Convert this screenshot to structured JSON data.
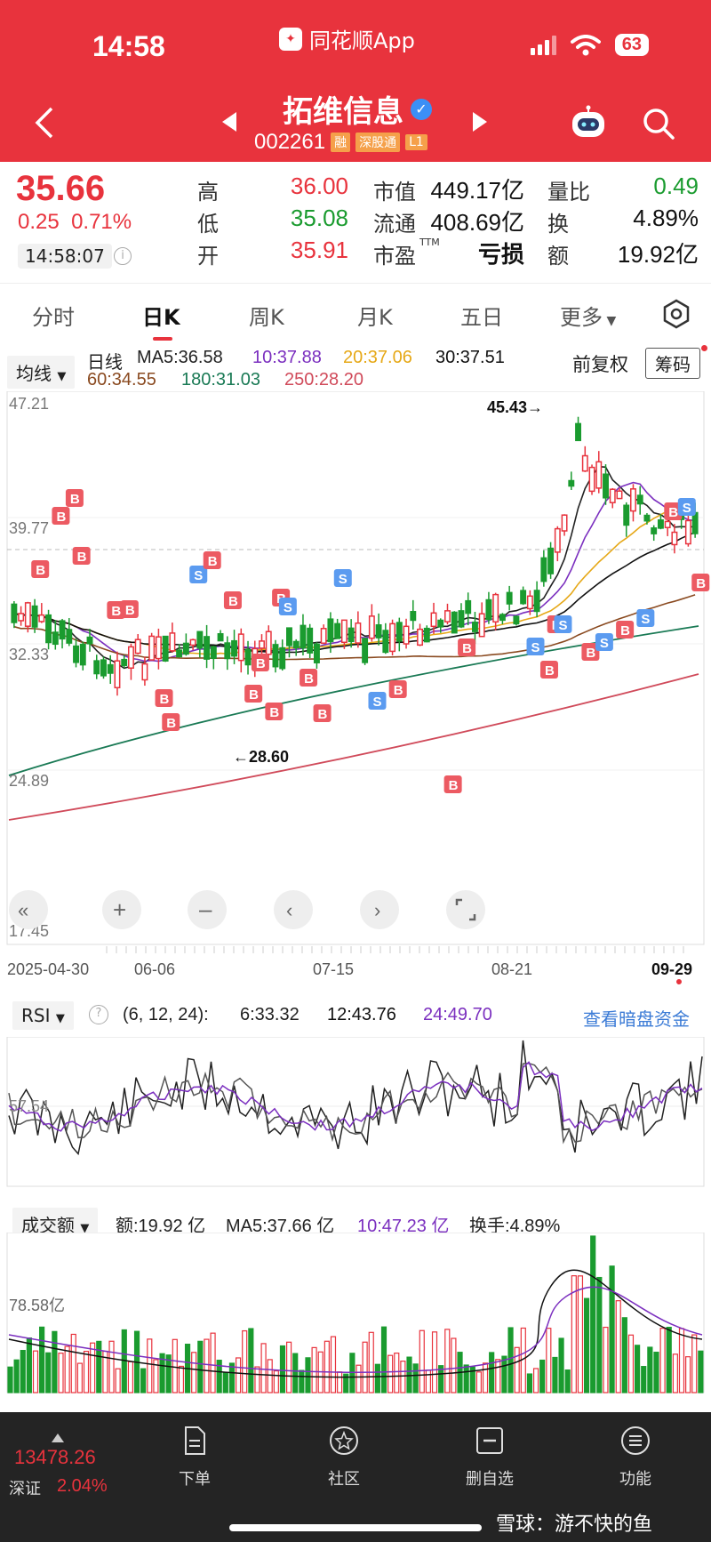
{
  "status_bar": {
    "time": "14:58",
    "app_name": "同花顺App",
    "battery": "63"
  },
  "header": {
    "stock_name": "拓维信息",
    "stock_code": "002261",
    "tags": [
      "融",
      "深股通",
      "L1"
    ]
  },
  "quote": {
    "price": "35.66",
    "change": "0.25",
    "change_pct": "0.71%",
    "time": "14:58:07",
    "high_label": "高",
    "high": "36.00",
    "low_label": "低",
    "low": "35.08",
    "open_label": "开",
    "open": "35.91",
    "mcap_label": "市值",
    "mcap": "449.17亿",
    "float_label": "流通",
    "float": "408.69亿",
    "pe_label": "市盈",
    "pe_sup": "TTM",
    "pe": "亏损",
    "vol_ratio_label": "量比",
    "vol_ratio": "0.49",
    "turnover_label": "换",
    "turnover": "4.89%",
    "amount_label": "额",
    "amount": "19.92亿"
  },
  "tabs": [
    "分时",
    "日K",
    "周K",
    "月K",
    "五日",
    "更多"
  ],
  "ma_bar": {
    "dropdown": "均线",
    "period": "日线",
    "ma5": "MA5:36.58",
    "ma10": "10:37.88",
    "ma20": "20:37.06",
    "ma30": "30:37.51",
    "ma60": "60:34.55",
    "ma180": "180:31.03",
    "ma250": "250:28.20",
    "adjust": "前复权",
    "chip_button": "筹码"
  },
  "kline": {
    "y_ticks": [
      "47.21",
      "39.77",
      "32.33",
      "24.89",
      "17.45"
    ],
    "x_ticks": [
      "2025-04-30",
      "06-06",
      "07-15",
      "08-21",
      "09-29"
    ],
    "high_annot": "45.43→",
    "low_annot": "←28.60",
    "colors": {
      "up": "#e8333d",
      "down": "#1a9b2f",
      "ma5": "#222222",
      "ma10": "#7b2fbf",
      "ma20": "#e6a817",
      "ma30": "#111111",
      "ma60": "#8a4a20",
      "ma180": "#1a7a55",
      "ma250": "#d04a5a"
    }
  },
  "rsi": {
    "dropdown": "RSI",
    "params": "(6, 12, 24):",
    "rsi6": "6:33.32",
    "rsi12": "12:43.76",
    "rsi24": "24:49.70",
    "link": "查看暗盘资金",
    "level_label": "57.54"
  },
  "volume": {
    "dropdown": "成交额",
    "amount": "额:19.92 亿",
    "ma5": "MA5:37.66 亿",
    "ma10": "10:47.23 亿",
    "turnover": "换手:4.89%",
    "level_label": "78.58亿"
  },
  "bottom_bar": {
    "index_value": "13478.26",
    "index_name": "深证",
    "index_pct": "2.04%",
    "items": [
      "下单",
      "社区",
      "删自选",
      "功能"
    ],
    "watermark": "雪球：游不快的鱼"
  }
}
